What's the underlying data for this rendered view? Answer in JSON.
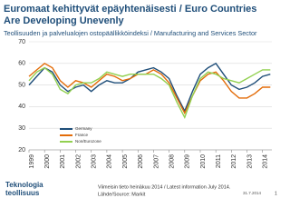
{
  "chart_data": {
    "type": "line",
    "title": "Euromaat kehittyvät epäyhtenäisesti / Euro Countries Are Developing Unevenly",
    "subtitle": "Teollisuuden ja palvelualojen ostopäällikköindeksi / Manufacturing and Services Sector",
    "x": [
      1999,
      1999.5,
      2000,
      2000.5,
      2001,
      2001.5,
      2002,
      2002.5,
      2003,
      2003.5,
      2004,
      2004.5,
      2005,
      2005.5,
      2006,
      2006.5,
      2007,
      2007.5,
      2008,
      2008.5,
      2009,
      2009.5,
      2010,
      2010.5,
      2011,
      2011.5,
      2012,
      2012.5,
      2013,
      2013.5,
      2014,
      2014.5
    ],
    "series": [
      {
        "name": "Germany",
        "color": "#1f4e79",
        "values": [
          50,
          54,
          58,
          56,
          50,
          47,
          49,
          50,
          47,
          50,
          52,
          51,
          51,
          53,
          56,
          57,
          58,
          56,
          53,
          45,
          38,
          47,
          55,
          58,
          60,
          55,
          50,
          48,
          49,
          51,
          54,
          55
        ]
      },
      {
        "name": "France",
        "color": "#e36c09",
        "values": [
          54,
          57,
          60,
          58,
          52,
          49,
          52,
          51,
          49,
          52,
          55,
          54,
          52,
          53,
          55,
          55,
          57,
          55,
          51,
          44,
          37,
          45,
          52,
          55,
          56,
          52,
          47,
          44,
          44,
          46,
          49,
          49
        ]
      },
      {
        "name": "Non/Eurozone",
        "color": "#92d050",
        "values": [
          52,
          56,
          58,
          55,
          48,
          46,
          50,
          51,
          51,
          53,
          56,
          55,
          54,
          55,
          55,
          55,
          55,
          53,
          50,
          42,
          35,
          45,
          53,
          56,
          55,
          53,
          52,
          51,
          53,
          55,
          57,
          57
        ]
      }
    ],
    "xlim": [
      1999,
      2014.6
    ],
    "xticks": [
      1999,
      2000,
      2001,
      2002,
      2003,
      2004,
      2005,
      2006,
      2007,
      2008,
      2009,
      2010,
      2011,
      2012,
      2013,
      2014
    ],
    "ylim": [
      20,
      70
    ],
    "yticks": [
      20,
      30,
      40,
      50,
      60,
      70
    ],
    "grid": true,
    "note": "Viimeisin tieto heinäkuu 2014 / Latest information July 2014.",
    "source": "Lähde/Source: Markit",
    "date": "31.7.2014",
    "page": "1",
    "logo": [
      "Teknologia",
      "teollisuus"
    ]
  }
}
